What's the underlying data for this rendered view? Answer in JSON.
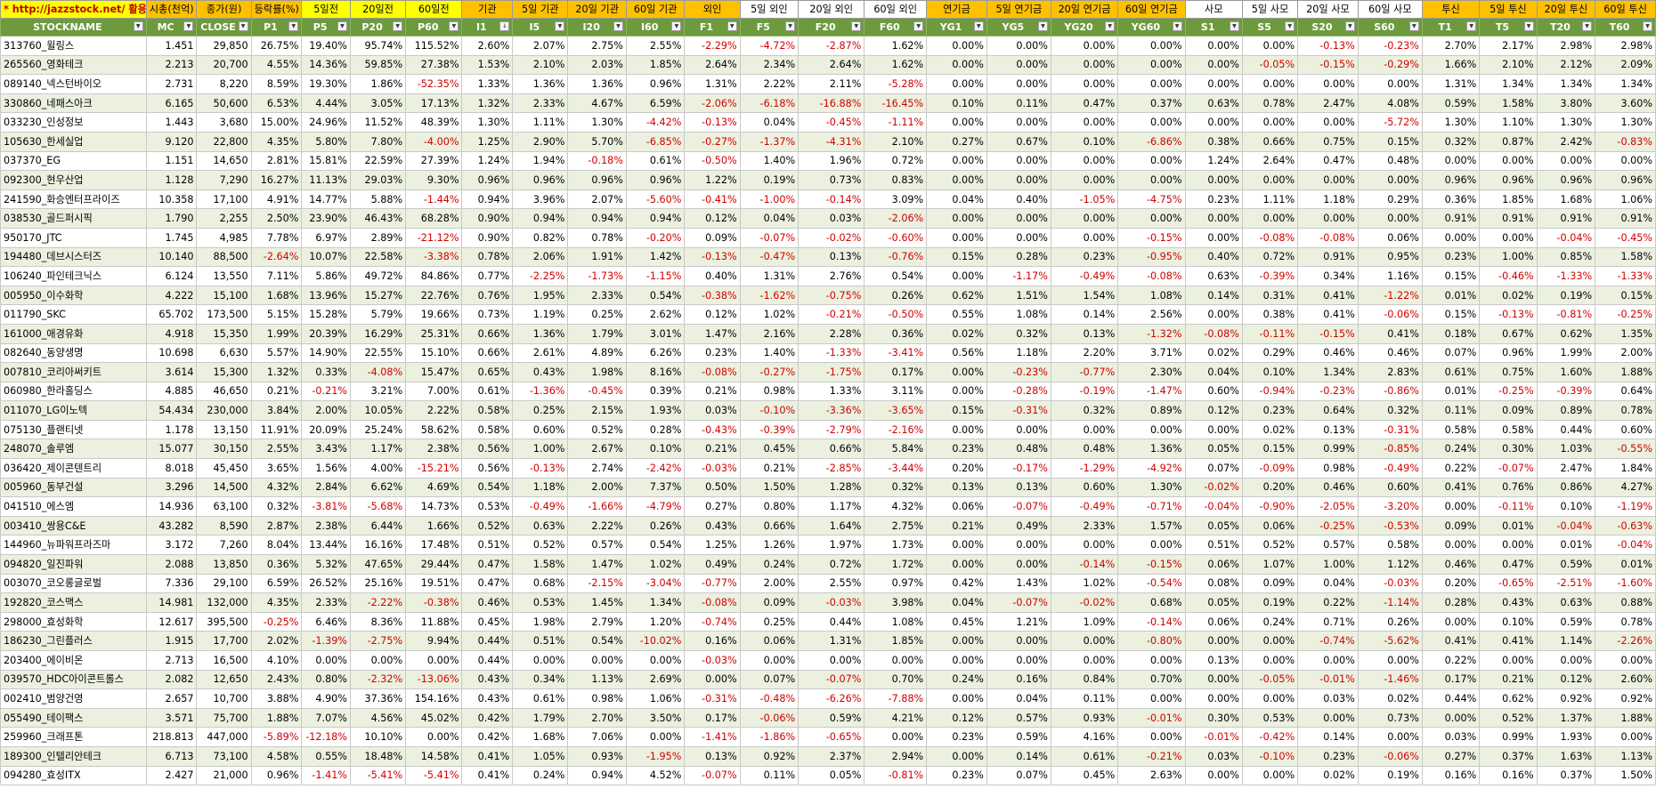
{
  "header_top": [
    "* http://jazzstock.net/ 활용",
    "시총(천억)",
    "종가(원)",
    "등락률(%)",
    "5일전",
    "20일전",
    "60일전",
    "기관",
    "5일 기관",
    "20일 기관",
    "60일 기관",
    "외인",
    "5일 외인",
    "20일 외인",
    "60일 외인",
    "연기금",
    "5일 연기금",
    "20일 연기금",
    "60일 연기금",
    "사모",
    "5일 사모",
    "20일 사모",
    "60일 사모",
    "투신",
    "5일 투신",
    "20일 투신",
    "60일 투신"
  ],
  "header_cols": [
    "STOCKNAME",
    "MC",
    "CLOSE",
    "P1",
    "P5",
    "P20",
    "P60",
    "I1",
    "I5",
    "I20",
    "I60",
    "F1",
    "F5",
    "F20",
    "F60",
    "YG1",
    "YG5",
    "YG20",
    "YG60",
    "S1",
    "S5",
    "S20",
    "S60",
    "T1",
    "T5",
    "T20",
    "T60"
  ],
  "dropdown_icon": "chevron-down-icon",
  "sort_icon": "sort-icon",
  "colors": {
    "header_green": "#6e9a3e",
    "band": "#ebf1de",
    "yellow": "#ffff00",
    "orange": "#ffc000",
    "neg": "#d00000",
    "link": "#c00000"
  },
  "rows": [
    [
      "313760_윌링스",
      "1.451",
      "29,850",
      "26.75%",
      "19.40%",
      "95.74%",
      "115.52%",
      "2.60%",
      "2.07%",
      "2.75%",
      "2.55%",
      "-2.29%",
      "-4.72%",
      "-2.87%",
      "1.62%",
      "0.00%",
      "0.00%",
      "0.00%",
      "0.00%",
      "0.00%",
      "0.00%",
      "-0.13%",
      "-0.23%",
      "2.70%",
      "2.17%",
      "2.98%",
      "2.98%"
    ],
    [
      "265560_영화테크",
      "2.213",
      "20,700",
      "4.55%",
      "14.36%",
      "59.85%",
      "27.38%",
      "1.53%",
      "2.10%",
      "2.03%",
      "1.85%",
      "2.64%",
      "2.34%",
      "2.64%",
      "1.62%",
      "0.00%",
      "0.00%",
      "0.00%",
      "0.00%",
      "0.00%",
      "-0.05%",
      "-0.15%",
      "-0.29%",
      "1.66%",
      "2.10%",
      "2.12%",
      "2.09%"
    ],
    [
      "089140_넥스턴바이오",
      "2.731",
      "8,220",
      "8.59%",
      "19.30%",
      "1.86%",
      "-52.35%",
      "1.33%",
      "1.36%",
      "1.36%",
      "0.96%",
      "1.31%",
      "2.22%",
      "2.11%",
      "-5.28%",
      "0.00%",
      "0.00%",
      "0.00%",
      "0.00%",
      "0.00%",
      "0.00%",
      "0.00%",
      "0.00%",
      "1.31%",
      "1.34%",
      "1.34%",
      "1.34%"
    ],
    [
      "330860_네패스아크",
      "6.165",
      "50,600",
      "6.53%",
      "4.44%",
      "3.05%",
      "17.13%",
      "1.32%",
      "2.33%",
      "4.67%",
      "6.59%",
      "-2.06%",
      "-6.18%",
      "-16.88%",
      "-16.45%",
      "0.10%",
      "0.11%",
      "0.47%",
      "0.37%",
      "0.63%",
      "0.78%",
      "2.47%",
      "4.08%",
      "0.59%",
      "1.58%",
      "3.80%",
      "3.60%"
    ],
    [
      "033230_인성정보",
      "1.443",
      "3,680",
      "15.00%",
      "24.96%",
      "11.52%",
      "48.39%",
      "1.30%",
      "1.11%",
      "1.30%",
      "-4.42%",
      "-0.13%",
      "0.04%",
      "-0.45%",
      "-1.11%",
      "0.00%",
      "0.00%",
      "0.00%",
      "0.00%",
      "0.00%",
      "0.00%",
      "0.00%",
      "-5.72%",
      "1.30%",
      "1.10%",
      "1.30%",
      "1.30%"
    ],
    [
      "105630_한세실업",
      "9.120",
      "22,800",
      "4.35%",
      "5.80%",
      "7.80%",
      "-4.00%",
      "1.25%",
      "2.90%",
      "5.70%",
      "-6.85%",
      "-0.27%",
      "-1.37%",
      "-4.31%",
      "2.10%",
      "0.27%",
      "0.67%",
      "0.10%",
      "-6.86%",
      "0.38%",
      "0.66%",
      "0.75%",
      "0.15%",
      "0.32%",
      "0.87%",
      "2.42%",
      "-0.83%"
    ],
    [
      "037370_EG",
      "1.151",
      "14,650",
      "2.81%",
      "15.81%",
      "22.59%",
      "27.39%",
      "1.24%",
      "1.94%",
      "-0.18%",
      "0.61%",
      "-0.50%",
      "1.40%",
      "1.96%",
      "0.72%",
      "0.00%",
      "0.00%",
      "0.00%",
      "0.00%",
      "1.24%",
      "2.64%",
      "0.47%",
      "0.48%",
      "0.00%",
      "0.00%",
      "0.00%",
      "0.00%"
    ],
    [
      "092300_현우산업",
      "1.128",
      "7,290",
      "16.27%",
      "11.13%",
      "29.03%",
      "9.30%",
      "0.96%",
      "0.96%",
      "0.96%",
      "0.96%",
      "1.22%",
      "0.19%",
      "0.73%",
      "0.83%",
      "0.00%",
      "0.00%",
      "0.00%",
      "0.00%",
      "0.00%",
      "0.00%",
      "0.00%",
      "0.00%",
      "0.96%",
      "0.96%",
      "0.96%",
      "0.96%"
    ],
    [
      "241590_화승엔터프라이즈",
      "10.358",
      "17,100",
      "4.91%",
      "14.77%",
      "5.88%",
      "-1.44%",
      "0.94%",
      "3.96%",
      "2.07%",
      "-5.60%",
      "-0.41%",
      "-1.00%",
      "-0.14%",
      "3.09%",
      "0.04%",
      "0.40%",
      "-1.05%",
      "-4.75%",
      "0.23%",
      "1.11%",
      "1.18%",
      "0.29%",
      "0.36%",
      "1.85%",
      "1.68%",
      "1.06%"
    ],
    [
      "038530_골드퍼시픽",
      "1.790",
      "2,255",
      "2.50%",
      "23.90%",
      "46.43%",
      "68.28%",
      "0.90%",
      "0.94%",
      "0.94%",
      "0.94%",
      "0.12%",
      "0.04%",
      "0.03%",
      "-2.06%",
      "0.00%",
      "0.00%",
      "0.00%",
      "0.00%",
      "0.00%",
      "0.00%",
      "0.00%",
      "0.00%",
      "0.91%",
      "0.91%",
      "0.91%",
      "0.91%"
    ],
    [
      "950170_JTC",
      "1.745",
      "4,985",
      "7.78%",
      "6.97%",
      "2.89%",
      "-21.12%",
      "0.90%",
      "0.82%",
      "0.78%",
      "-0.20%",
      "0.09%",
      "-0.07%",
      "-0.02%",
      "-0.60%",
      "0.00%",
      "0.00%",
      "0.00%",
      "-0.15%",
      "0.00%",
      "-0.08%",
      "-0.08%",
      "0.06%",
      "0.00%",
      "0.00%",
      "-0.04%",
      "-0.45%"
    ],
    [
      "194480_데브시스터즈",
      "10.140",
      "88,500",
      "-2.64%",
      "10.07%",
      "22.58%",
      "-3.38%",
      "0.78%",
      "2.06%",
      "1.91%",
      "1.42%",
      "-0.13%",
      "-0.47%",
      "0.13%",
      "-0.76%",
      "0.15%",
      "0.28%",
      "0.23%",
      "-0.95%",
      "0.40%",
      "0.72%",
      "0.91%",
      "0.95%",
      "0.23%",
      "1.00%",
      "0.85%",
      "1.58%"
    ],
    [
      "106240_파인테크닉스",
      "6.124",
      "13,550",
      "7.11%",
      "5.86%",
      "49.72%",
      "84.86%",
      "0.77%",
      "-2.25%",
      "-1.73%",
      "-1.15%",
      "0.40%",
      "1.31%",
      "2.76%",
      "0.54%",
      "0.00%",
      "-1.17%",
      "-0.49%",
      "-0.08%",
      "0.63%",
      "-0.39%",
      "0.34%",
      "1.16%",
      "0.15%",
      "-0.46%",
      "-1.33%",
      "-1.33%"
    ],
    [
      "005950_이수화학",
      "4.222",
      "15,100",
      "1.68%",
      "13.96%",
      "15.27%",
      "22.76%",
      "0.76%",
      "1.95%",
      "2.33%",
      "0.54%",
      "-0.38%",
      "-1.62%",
      "-0.75%",
      "0.26%",
      "0.62%",
      "1.51%",
      "1.54%",
      "1.08%",
      "0.14%",
      "0.31%",
      "0.41%",
      "-1.22%",
      "0.01%",
      "0.02%",
      "0.19%",
      "0.15%"
    ],
    [
      "011790_SKC",
      "65.702",
      "173,500",
      "5.15%",
      "15.28%",
      "5.79%",
      "19.66%",
      "0.73%",
      "1.19%",
      "0.25%",
      "2.62%",
      "0.12%",
      "1.02%",
      "-0.21%",
      "-0.50%",
      "0.55%",
      "1.08%",
      "0.14%",
      "2.56%",
      "0.00%",
      "0.38%",
      "0.41%",
      "-0.06%",
      "0.15%",
      "-0.13%",
      "-0.81%",
      "-0.25%"
    ],
    [
      "161000_애경유화",
      "4.918",
      "15,350",
      "1.99%",
      "20.39%",
      "16.29%",
      "25.31%",
      "0.66%",
      "1.36%",
      "1.79%",
      "3.01%",
      "1.47%",
      "2.16%",
      "2.28%",
      "0.36%",
      "0.02%",
      "0.32%",
      "0.13%",
      "-1.32%",
      "-0.08%",
      "-0.11%",
      "-0.15%",
      "0.41%",
      "0.18%",
      "0.67%",
      "0.62%",
      "1.35%"
    ],
    [
      "082640_동양생명",
      "10.698",
      "6,630",
      "5.57%",
      "14.90%",
      "22.55%",
      "15.10%",
      "0.66%",
      "2.61%",
      "4.89%",
      "6.26%",
      "0.23%",
      "1.40%",
      "-1.33%",
      "-3.41%",
      "0.56%",
      "1.18%",
      "2.20%",
      "3.71%",
      "0.02%",
      "0.29%",
      "0.46%",
      "0.46%",
      "0.07%",
      "0.96%",
      "1.99%",
      "2.00%"
    ],
    [
      "007810_코리아써키트",
      "3.614",
      "15,300",
      "1.32%",
      "0.33%",
      "-4.08%",
      "15.47%",
      "0.65%",
      "0.43%",
      "1.98%",
      "8.16%",
      "-0.08%",
      "-0.27%",
      "-1.75%",
      "0.17%",
      "0.00%",
      "-0.23%",
      "-0.77%",
      "2.30%",
      "0.04%",
      "0.10%",
      "1.34%",
      "2.83%",
      "0.61%",
      "0.75%",
      "1.60%",
      "1.88%"
    ],
    [
      "060980_한라홀딩스",
      "4.885",
      "46,650",
      "0.21%",
      "-0.21%",
      "3.21%",
      "7.00%",
      "0.61%",
      "-1.36%",
      "-0.45%",
      "0.39%",
      "0.21%",
      "0.98%",
      "1.33%",
      "3.11%",
      "0.00%",
      "-0.28%",
      "-0.19%",
      "-1.47%",
      "0.60%",
      "-0.94%",
      "-0.23%",
      "-0.86%",
      "0.01%",
      "-0.25%",
      "-0.39%",
      "0.64%"
    ],
    [
      "011070_LG이노텍",
      "54.434",
      "230,000",
      "3.84%",
      "2.00%",
      "10.05%",
      "2.22%",
      "0.58%",
      "0.25%",
      "2.15%",
      "1.93%",
      "0.03%",
      "-0.10%",
      "-3.36%",
      "-3.65%",
      "0.15%",
      "-0.31%",
      "0.32%",
      "0.89%",
      "0.12%",
      "0.23%",
      "0.64%",
      "0.32%",
      "0.11%",
      "0.09%",
      "0.89%",
      "0.78%"
    ],
    [
      "075130_플랜티넷",
      "1.178",
      "13,150",
      "11.91%",
      "20.09%",
      "25.24%",
      "58.62%",
      "0.58%",
      "0.60%",
      "0.52%",
      "0.28%",
      "-0.43%",
      "-0.39%",
      "-2.79%",
      "-2.16%",
      "0.00%",
      "0.00%",
      "0.00%",
      "0.00%",
      "0.00%",
      "0.02%",
      "0.13%",
      "-0.31%",
      "0.58%",
      "0.58%",
      "0.44%",
      "0.60%"
    ],
    [
      "248070_솔루엠",
      "15.077",
      "30,150",
      "2.55%",
      "3.43%",
      "1.17%",
      "2.38%",
      "0.56%",
      "1.00%",
      "2.67%",
      "0.10%",
      "0.21%",
      "0.45%",
      "0.66%",
      "5.84%",
      "0.23%",
      "0.48%",
      "0.48%",
      "1.36%",
      "0.05%",
      "0.15%",
      "0.99%",
      "-0.85%",
      "0.24%",
      "0.30%",
      "1.03%",
      "-0.55%"
    ],
    [
      "036420_제이콘텐트리",
      "8.018",
      "45,450",
      "3.65%",
      "1.56%",
      "4.00%",
      "-15.21%",
      "0.56%",
      "-0.13%",
      "2.74%",
      "-2.42%",
      "-0.03%",
      "0.21%",
      "-2.85%",
      "-3.44%",
      "0.20%",
      "-0.17%",
      "-1.29%",
      "-4.92%",
      "0.07%",
      "-0.09%",
      "0.98%",
      "-0.49%",
      "0.22%",
      "-0.07%",
      "2.47%",
      "1.84%"
    ],
    [
      "005960_동부건설",
      "3.296",
      "14,500",
      "4.32%",
      "2.84%",
      "6.62%",
      "4.69%",
      "0.54%",
      "1.18%",
      "2.00%",
      "7.37%",
      "0.50%",
      "1.50%",
      "1.28%",
      "0.32%",
      "0.13%",
      "0.13%",
      "0.60%",
      "1.30%",
      "-0.02%",
      "0.20%",
      "0.46%",
      "0.60%",
      "0.41%",
      "0.76%",
      "0.86%",
      "4.27%"
    ],
    [
      "041510_에스엠",
      "14.936",
      "63,100",
      "0.32%",
      "-3.81%",
      "-5.68%",
      "14.73%",
      "0.53%",
      "-0.49%",
      "-1.66%",
      "-4.79%",
      "0.27%",
      "0.80%",
      "1.17%",
      "4.32%",
      "0.06%",
      "-0.07%",
      "-0.49%",
      "-0.71%",
      "-0.04%",
      "-0.90%",
      "-2.05%",
      "-3.20%",
      "0.00%",
      "-0.11%",
      "0.10%",
      "-1.19%"
    ],
    [
      "003410_쌍용C&E",
      "43.282",
      "8,590",
      "2.87%",
      "2.38%",
      "6.44%",
      "1.66%",
      "0.52%",
      "0.63%",
      "2.22%",
      "0.26%",
      "0.43%",
      "0.66%",
      "1.64%",
      "2.75%",
      "0.21%",
      "0.49%",
      "2.33%",
      "1.57%",
      "0.05%",
      "0.06%",
      "-0.25%",
      "-0.53%",
      "0.09%",
      "0.01%",
      "-0.04%",
      "-0.63%"
    ],
    [
      "144960_뉴파워프라즈마",
      "3.172",
      "7,260",
      "8.04%",
      "13.44%",
      "16.16%",
      "17.48%",
      "0.51%",
      "0.52%",
      "0.57%",
      "0.54%",
      "1.25%",
      "1.26%",
      "1.97%",
      "1.73%",
      "0.00%",
      "0.00%",
      "0.00%",
      "0.00%",
      "0.51%",
      "0.52%",
      "0.57%",
      "0.58%",
      "0.00%",
      "0.00%",
      "0.01%",
      "-0.04%"
    ],
    [
      "094820_일진파워",
      "2.088",
      "13,850",
      "0.36%",
      "5.32%",
      "47.65%",
      "29.44%",
      "0.47%",
      "1.58%",
      "1.47%",
      "1.02%",
      "0.49%",
      "0.24%",
      "0.72%",
      "1.72%",
      "0.00%",
      "0.00%",
      "-0.14%",
      "-0.15%",
      "0.06%",
      "1.07%",
      "1.00%",
      "1.12%",
      "0.46%",
      "0.47%",
      "0.59%",
      "0.01%"
    ],
    [
      "003070_코오롱글로벌",
      "7.336",
      "29,100",
      "6.59%",
      "26.52%",
      "25.16%",
      "19.51%",
      "0.47%",
      "0.68%",
      "-2.15%",
      "-3.04%",
      "-0.77%",
      "2.00%",
      "2.55%",
      "0.97%",
      "0.42%",
      "1.43%",
      "1.02%",
      "-0.54%",
      "0.08%",
      "0.09%",
      "0.04%",
      "-0.03%",
      "0.20%",
      "-0.65%",
      "-2.51%",
      "-1.60%"
    ],
    [
      "192820_코스맥스",
      "14.981",
      "132,000",
      "4.35%",
      "2.33%",
      "-2.22%",
      "-0.38%",
      "0.46%",
      "0.53%",
      "1.45%",
      "1.34%",
      "-0.08%",
      "0.09%",
      "-0.03%",
      "3.98%",
      "0.04%",
      "-0.07%",
      "-0.02%",
      "0.68%",
      "0.05%",
      "0.19%",
      "0.22%",
      "-1.14%",
      "0.28%",
      "0.43%",
      "0.63%",
      "0.88%"
    ],
    [
      "298000_효성화학",
      "12.617",
      "395,500",
      "-0.25%",
      "6.46%",
      "8.36%",
      "11.88%",
      "0.45%",
      "1.98%",
      "2.79%",
      "1.20%",
      "-0.74%",
      "0.25%",
      "0.44%",
      "1.08%",
      "0.45%",
      "1.21%",
      "1.09%",
      "-0.14%",
      "0.06%",
      "0.24%",
      "0.71%",
      "0.26%",
      "0.00%",
      "0.10%",
      "0.59%",
      "0.78%"
    ],
    [
      "186230_그린플러스",
      "1.915",
      "17,700",
      "2.02%",
      "-1.39%",
      "-2.75%",
      "9.94%",
      "0.44%",
      "0.51%",
      "0.54%",
      "-10.02%",
      "0.16%",
      "0.06%",
      "1.31%",
      "1.85%",
      "0.00%",
      "0.00%",
      "0.00%",
      "-0.80%",
      "0.00%",
      "0.00%",
      "-0.74%",
      "-5.62%",
      "0.41%",
      "0.41%",
      "1.14%",
      "-2.26%"
    ],
    [
      "203400_에이비온",
      "2.713",
      "16,500",
      "4.10%",
      "0.00%",
      "0.00%",
      "0.00%",
      "0.44%",
      "0.00%",
      "0.00%",
      "0.00%",
      "-0.03%",
      "0.00%",
      "0.00%",
      "0.00%",
      "0.00%",
      "0.00%",
      "0.00%",
      "0.00%",
      "0.13%",
      "0.00%",
      "0.00%",
      "0.00%",
      "0.22%",
      "0.00%",
      "0.00%",
      "0.00%"
    ],
    [
      "039570_HDC아이콘트롤스",
      "2.082",
      "12,650",
      "2.43%",
      "0.80%",
      "-2.32%",
      "-13.06%",
      "0.43%",
      "0.34%",
      "1.13%",
      "2.69%",
      "0.00%",
      "0.07%",
      "-0.07%",
      "0.70%",
      "0.24%",
      "0.16%",
      "0.84%",
      "0.70%",
      "0.00%",
      "-0.05%",
      "-0.01%",
      "-1.46%",
      "0.17%",
      "0.21%",
      "0.12%",
      "2.60%"
    ],
    [
      "002410_범양건영",
      "2.657",
      "10,700",
      "3.88%",
      "4.90%",
      "37.36%",
      "154.16%",
      "0.43%",
      "0.61%",
      "0.98%",
      "1.06%",
      "-0.31%",
      "-0.48%",
      "-6.26%",
      "-7.88%",
      "0.00%",
      "0.04%",
      "0.11%",
      "0.00%",
      "0.00%",
      "0.00%",
      "0.03%",
      "0.02%",
      "0.44%",
      "0.62%",
      "0.92%",
      "0.92%"
    ],
    [
      "055490_테이팩스",
      "3.571",
      "75,700",
      "1.88%",
      "7.07%",
      "4.56%",
      "45.02%",
      "0.42%",
      "1.79%",
      "2.70%",
      "3.50%",
      "0.17%",
      "-0.06%",
      "0.59%",
      "4.21%",
      "0.12%",
      "0.57%",
      "0.93%",
      "-0.01%",
      "0.30%",
      "0.53%",
      "0.00%",
      "0.73%",
      "0.00%",
      "0.52%",
      "1.37%",
      "1.88%"
    ],
    [
      "259960_크래프톤",
      "218.813",
      "447,000",
      "-5.89%",
      "-12.18%",
      "10.10%",
      "0.00%",
      "0.42%",
      "1.68%",
      "7.06%",
      "0.00%",
      "-1.41%",
      "-1.86%",
      "-0.65%",
      "0.00%",
      "0.23%",
      "0.59%",
      "4.16%",
      "0.00%",
      "-0.01%",
      "-0.42%",
      "0.14%",
      "0.00%",
      "0.03%",
      "0.99%",
      "1.93%",
      "0.00%"
    ],
    [
      "189300_인텔리안테크",
      "6.713",
      "73,100",
      "4.58%",
      "0.55%",
      "18.48%",
      "14.58%",
      "0.41%",
      "1.05%",
      "0.93%",
      "-1.95%",
      "0.13%",
      "0.92%",
      "2.37%",
      "2.94%",
      "0.00%",
      "0.14%",
      "0.61%",
      "-0.21%",
      "0.03%",
      "-0.10%",
      "0.23%",
      "-0.06%",
      "0.27%",
      "0.37%",
      "1.63%",
      "1.13%"
    ],
    [
      "094280_효성ITX",
      "2.427",
      "21,000",
      "0.96%",
      "-1.41%",
      "-5.41%",
      "-5.41%",
      "0.41%",
      "0.24%",
      "0.94%",
      "4.52%",
      "-0.07%",
      "0.11%",
      "0.05%",
      "-0.81%",
      "0.23%",
      "0.07%",
      "0.45%",
      "2.63%",
      "0.00%",
      "0.00%",
      "0.02%",
      "0.19%",
      "0.16%",
      "0.16%",
      "0.37%",
      "1.50%"
    ]
  ]
}
